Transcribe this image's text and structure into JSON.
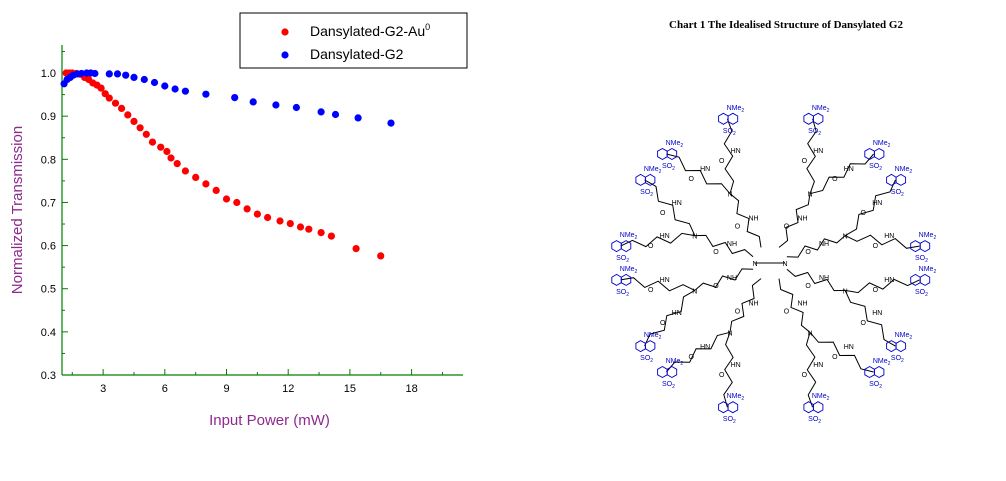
{
  "chart_data": {
    "type": "scatter",
    "xlabel": "Input Power (mW)",
    "ylabel": "Normalized Transmission",
    "xlim": [
      1,
      20.5
    ],
    "ylim": [
      0.3,
      1.065
    ],
    "xticks": [
      3,
      6,
      9,
      12,
      15,
      18
    ],
    "yticks": [
      0.3,
      0.4,
      0.5,
      0.6,
      0.7,
      0.8,
      0.9,
      1.0
    ],
    "grid": false,
    "legend": "top-right",
    "colors": {
      "axis_label": "#8e2a8e"
    },
    "series": [
      {
        "name": "Dansylated-G2-Au",
        "name_sup": "0",
        "color": "#ff0000",
        "points": [
          [
            1.2,
            1.0
          ],
          [
            1.35,
            1.0
          ],
          [
            1.5,
            1.0
          ],
          [
            1.7,
            0.999
          ],
          [
            1.9,
            0.997
          ],
          [
            2.1,
            0.99
          ],
          [
            2.3,
            0.985
          ],
          [
            2.5,
            0.977
          ],
          [
            2.7,
            0.972
          ],
          [
            2.9,
            0.965
          ],
          [
            3.1,
            0.952
          ],
          [
            3.3,
            0.942
          ],
          [
            3.6,
            0.93
          ],
          [
            3.9,
            0.918
          ],
          [
            4.2,
            0.903
          ],
          [
            4.5,
            0.888
          ],
          [
            4.8,
            0.873
          ],
          [
            5.1,
            0.858
          ],
          [
            5.4,
            0.84
          ],
          [
            5.8,
            0.828
          ],
          [
            6.1,
            0.818
          ],
          [
            6.3,
            0.803
          ],
          [
            6.6,
            0.79
          ],
          [
            7.0,
            0.773
          ],
          [
            7.5,
            0.758
          ],
          [
            8.0,
            0.743
          ],
          [
            8.5,
            0.728
          ],
          [
            9.0,
            0.708
          ],
          [
            9.5,
            0.7
          ],
          [
            10.0,
            0.685
          ],
          [
            10.5,
            0.673
          ],
          [
            11.0,
            0.665
          ],
          [
            11.6,
            0.657
          ],
          [
            12.1,
            0.651
          ],
          [
            12.6,
            0.643
          ],
          [
            13.0,
            0.638
          ],
          [
            13.6,
            0.63
          ],
          [
            14.1,
            0.622
          ],
          [
            15.3,
            0.593
          ],
          [
            16.5,
            0.576
          ]
        ]
      },
      {
        "name": "Dansylated-G2",
        "color": "#0000ff",
        "points": [
          [
            1.1,
            0.975
          ],
          [
            1.25,
            0.985
          ],
          [
            1.4,
            0.99
          ],
          [
            1.55,
            0.995
          ],
          [
            1.75,
            0.998
          ],
          [
            1.95,
            0.999
          ],
          [
            2.2,
            1.0
          ],
          [
            2.4,
            1.0
          ],
          [
            2.6,
            0.999
          ],
          [
            3.3,
            0.998
          ],
          [
            3.7,
            0.998
          ],
          [
            4.1,
            0.995
          ],
          [
            4.5,
            0.99
          ],
          [
            5.0,
            0.985
          ],
          [
            5.5,
            0.978
          ],
          [
            6.0,
            0.97
          ],
          [
            6.5,
            0.963
          ],
          [
            7.0,
            0.958
          ],
          [
            8.0,
            0.951
          ],
          [
            9.4,
            0.943
          ],
          [
            10.3,
            0.933
          ],
          [
            11.4,
            0.926
          ],
          [
            12.4,
            0.92
          ],
          [
            13.6,
            0.91
          ],
          [
            14.3,
            0.904
          ],
          [
            15.4,
            0.896
          ],
          [
            17.0,
            0.884
          ]
        ]
      }
    ]
  },
  "structure": {
    "caption": "Chart 1 The Idealised Structure of Dansylated G2",
    "labels": {
      "nme2": "NMe",
      "sub2": "2",
      "me2n": "Me",
      "me2n_rest": "N",
      "so2": "SO",
      "nh": "NH",
      "hn": "HN",
      "n": "N",
      "o": "O"
    }
  }
}
